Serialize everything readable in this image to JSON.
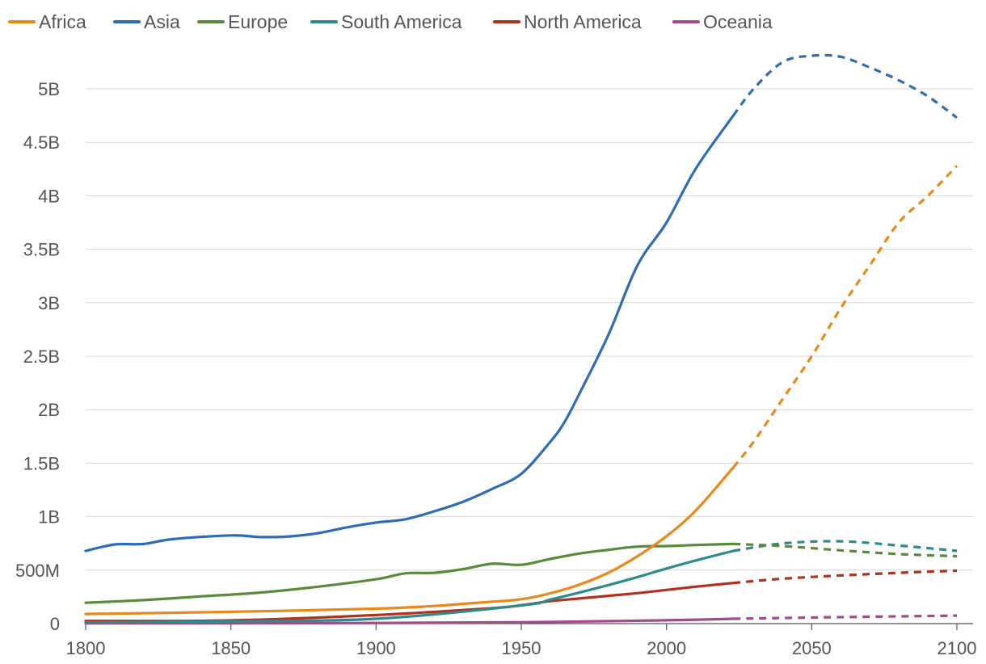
{
  "chart_data": {
    "type": "line",
    "title": "",
    "xlabel": "",
    "ylabel": "",
    "xlim": [
      1800,
      2100
    ],
    "ylim": [
      0,
      5500000000
    ],
    "x_ticks": [
      1800,
      1850,
      1900,
      1950,
      2000,
      2050,
      2100
    ],
    "x_tick_labels": [
      "1800",
      "1850",
      "1900",
      "1950",
      "2000",
      "2050",
      "2100"
    ],
    "y_ticks": [
      0,
      500000000,
      1000000000,
      1500000000,
      2000000000,
      2500000000,
      3000000000,
      3500000000,
      4000000000,
      4500000000,
      5000000000
    ],
    "y_tick_labels": [
      "0",
      "500M",
      "1B",
      "1.5B",
      "2B",
      "2.5B",
      "3B",
      "3.5B",
      "4B",
      "4.5B",
      "5B"
    ],
    "grid": true,
    "legend_position": "top",
    "projection_start": 2023,
    "projection_style": "dashed",
    "series": [
      {
        "name": "Africa",
        "color": "#E8891A",
        "x": [
          1800,
          1850,
          1900,
          1920,
          1930,
          1940,
          1950,
          1960,
          1970,
          1980,
          1990,
          2000,
          2010,
          2023,
          2030,
          2040,
          2050,
          2060,
          2070,
          2080,
          2090,
          2100
        ],
        "values": [
          90000000,
          110000000,
          140000000,
          165000000,
          185000000,
          205000000,
          228000000,
          283000000,
          364000000,
          476000000,
          630000000,
          818000000,
          1055000000,
          1460000000,
          1700000000,
          2100000000,
          2500000000,
          2950000000,
          3350000000,
          3750000000,
          4000000000,
          4280000000
        ]
      },
      {
        "name": "Asia",
        "color": "#2E6DB4",
        "x": [
          1800,
          1810,
          1820,
          1830,
          1850,
          1860,
          1870,
          1880,
          1890,
          1900,
          1910,
          1920,
          1930,
          1940,
          1950,
          1960,
          1965,
          1970,
          1980,
          1990,
          2000,
          2010,
          2023,
          2030,
          2040,
          2050,
          2060,
          2070,
          2080,
          2090,
          2100
        ],
        "values": [
          680000000,
          740000000,
          745000000,
          790000000,
          825000000,
          810000000,
          815000000,
          845000000,
          900000000,
          945000000,
          975000000,
          1050000000,
          1140000000,
          1260000000,
          1400000000,
          1700000000,
          1890000000,
          2150000000,
          2700000000,
          3350000000,
          3750000000,
          4250000000,
          4750000000,
          5000000000,
          5250000000,
          5310000000,
          5300000000,
          5200000000,
          5080000000,
          4930000000,
          4730000000
        ]
      },
      {
        "name": "Europe",
        "color": "#5A8B3A",
        "x": [
          1800,
          1820,
          1840,
          1860,
          1880,
          1900,
          1910,
          1920,
          1930,
          1940,
          1950,
          1960,
          1970,
          1980,
          1990,
          2000,
          2010,
          2023,
          2040,
          2060,
          2080,
          2100
        ],
        "values": [
          195000000,
          220000000,
          255000000,
          290000000,
          345000000,
          415000000,
          470000000,
          475000000,
          510000000,
          560000000,
          550000000,
          605000000,
          655000000,
          690000000,
          720000000,
          725000000,
          735000000,
          745000000,
          725000000,
          685000000,
          650000000,
          630000000
        ]
      },
      {
        "name": "South America",
        "color": "#2F8A8A",
        "x": [
          1800,
          1850,
          1900,
          1950,
          1960,
          1970,
          1980,
          1990,
          2000,
          2010,
          2023,
          2040,
          2060,
          2080,
          2100
        ],
        "values": [
          10000000,
          22000000,
          45000000,
          170000000,
          225000000,
          290000000,
          360000000,
          435000000,
          515000000,
          590000000,
          680000000,
          750000000,
          770000000,
          730000000,
          680000000
        ]
      },
      {
        "name": "North America",
        "color": "#B2301F",
        "x": [
          1800,
          1850,
          1900,
          1940,
          1950,
          1960,
          1970,
          1980,
          1990,
          2000,
          2010,
          2023,
          2040,
          2060,
          2080,
          2100
        ],
        "values": [
          25000000,
          30000000,
          80000000,
          145000000,
          172000000,
          210000000,
          235000000,
          260000000,
          285000000,
          315000000,
          345000000,
          380000000,
          420000000,
          450000000,
          475000000,
          495000000
        ]
      },
      {
        "name": "Oceania",
        "color": "#A34A8A",
        "x": [
          1800,
          1850,
          1900,
          1950,
          2000,
          2023,
          2050,
          2100
        ],
        "values": [
          2000000,
          3000000,
          6000000,
          13000000,
          31000000,
          45000000,
          57000000,
          75000000
        ]
      }
    ]
  }
}
